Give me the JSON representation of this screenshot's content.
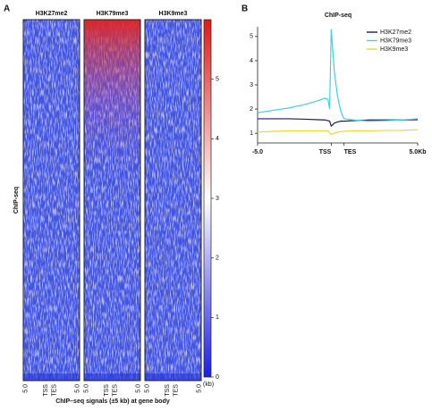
{
  "chart_data": [
    {
      "type": "heatmap",
      "panel_label": "A",
      "panels": [
        "H3K27me2",
        "H3K79me3",
        "H3K9me3"
      ],
      "xtick_labels": [
        "5.0",
        "TSS",
        "TES",
        "5.0"
      ],
      "xlabel": "ChIP–seq signals (±5 kb) at gene body",
      "ylabel": "ChIP-seq",
      "clim": [
        0,
        6
      ],
      "cticks": [
        0,
        1,
        2,
        3,
        4,
        5
      ],
      "colorbar_unit": "(kb)",
      "colors": [
        "#1c1ce6",
        "#ffffff",
        "#e01818"
      ]
    },
    {
      "type": "line",
      "panel_label": "B",
      "title": "ChIP-seq",
      "xlim": [
        0,
        100
      ],
      "xticks": [
        {
          "value": 0,
          "label": "-5.0"
        },
        {
          "value": 46,
          "label": "TSS"
        },
        {
          "value": 54,
          "label": "TES"
        },
        {
          "value": 100,
          "label": "5.0Kb"
        }
      ],
      "ylim": [
        0.6,
        5.4
      ],
      "yticks": [
        1,
        2,
        3,
        4,
        5
      ],
      "legend": "upper right",
      "x": [
        0,
        10,
        20,
        30,
        38,
        42,
        44,
        45,
        46,
        48,
        50,
        52,
        54,
        60,
        70,
        80,
        90,
        100
      ],
      "series": [
        {
          "name": "H3K27me2",
          "color": "#1b1b5c",
          "values": [
            1.6,
            1.6,
            1.6,
            1.58,
            1.56,
            1.55,
            1.52,
            1.5,
            1.3,
            1.42,
            1.47,
            1.5,
            1.5,
            1.52,
            1.55,
            1.55,
            1.55,
            1.56
          ]
        },
        {
          "name": "H3K79me3",
          "color": "#3fd0e4",
          "values": [
            1.85,
            1.95,
            2.05,
            2.2,
            2.35,
            2.45,
            2.4,
            2.0,
            5.3,
            3.5,
            2.5,
            1.9,
            1.6,
            1.55,
            1.5,
            1.52,
            1.55,
            1.6
          ]
        },
        {
          "name": "H3K9me3",
          "color": "#f4d430",
          "values": [
            1.05,
            1.08,
            1.1,
            1.1,
            1.1,
            1.1,
            1.1,
            1.02,
            0.95,
            1.0,
            1.05,
            1.07,
            1.08,
            1.1,
            1.1,
            1.12,
            1.12,
            1.15
          ]
        }
      ]
    }
  ]
}
